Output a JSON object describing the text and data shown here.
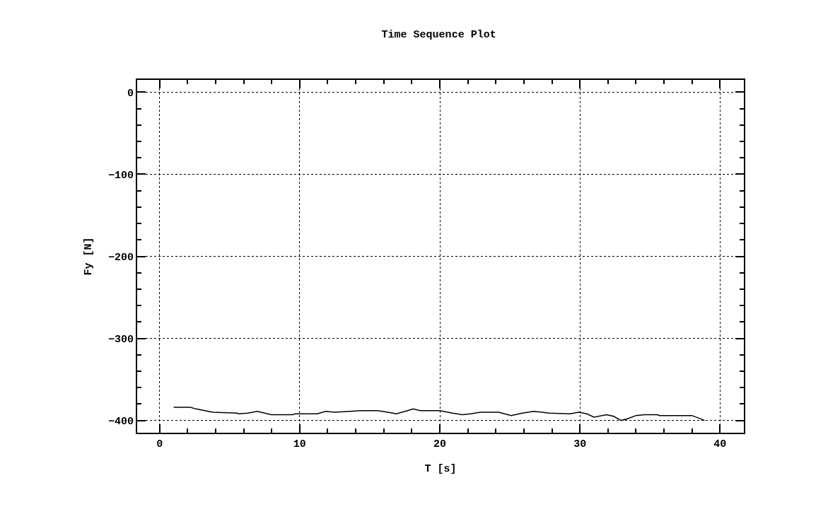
{
  "chart_data": {
    "type": "line",
    "title": "Time Sequence Plot",
    "xlabel": "T [s]",
    "ylabel": "Fy [N]",
    "x": [
      1.0,
      2.2,
      2.6,
      3.8,
      5.55,
      5.6,
      6.3,
      6.97,
      7.98,
      9.5,
      9.66,
      11.26,
      11.85,
      12.5,
      13.6,
      14.5,
      15.55,
      16.3,
      16.9,
      17.7,
      18.1,
      18.6,
      20.0,
      20.9,
      21.6,
      22.2,
      22.9,
      24.2,
      25.1,
      25.9,
      26.7,
      27.3,
      27.8,
      29.3,
      29.9,
      30.5,
      31.0,
      31.9,
      32.4,
      32.95,
      33.4,
      34.0,
      34.6,
      35.5,
      35.7,
      38.0,
      38.9
    ],
    "series": [
      {
        "color": "#000000",
        "values": [
          -384,
          -384,
          -386,
          -390,
          -391,
          -392,
          -391,
          -389,
          -393,
          -393,
          -392,
          -392,
          -389,
          -390,
          -389,
          -388,
          -388,
          -390,
          -392,
          -388,
          -386,
          -388,
          -388,
          -391,
          -393,
          -392,
          -390,
          -390,
          -394,
          -391,
          -389,
          -390,
          -391,
          -392,
          -390,
          -392,
          -396,
          -393,
          -395,
          -400,
          -398,
          -394,
          -393,
          -393,
          -394,
          -394,
          -400
        ]
      }
    ],
    "xlim": [
      -1.6,
      41.7
    ],
    "ylim": [
      -415,
      15
    ],
    "xticks": [
      0,
      {
        "value": 2,
        "label": null
      },
      {
        "value": 4,
        "label": null
      },
      {
        "value": 6,
        "label": null
      },
      {
        "value": 8,
        "label": null
      },
      10,
      {
        "value": 12,
        "label": null
      },
      {
        "value": 14,
        "label": null
      },
      {
        "value": 16,
        "label": null
      },
      {
        "value": 18,
        "label": null
      },
      20,
      {
        "value": 22,
        "label": null
      },
      {
        "value": 24,
        "label": null
      },
      {
        "value": 26,
        "label": null
      },
      {
        "value": 28,
        "label": null
      },
      30,
      {
        "value": 32,
        "label": null
      },
      {
        "value": 34,
        "label": null
      },
      {
        "value": 36,
        "label": null
      },
      {
        "value": 38,
        "label": null
      },
      40
    ],
    "yticks": [
      -400,
      {
        "value": -380,
        "label": null
      },
      {
        "value": -360,
        "label": null
      },
      {
        "value": -340,
        "label": null
      },
      {
        "value": -320,
        "label": null
      },
      -300,
      {
        "value": -280,
        "label": null
      },
      {
        "value": -260,
        "label": null
      },
      {
        "value": -240,
        "label": null
      },
      {
        "value": -220,
        "label": null
      },
      -200,
      {
        "value": -180,
        "label": null
      },
      {
        "value": -160,
        "label": null
      },
      {
        "value": -140,
        "label": null
      },
      {
        "value": -120,
        "label": null
      },
      -100,
      {
        "value": -80,
        "label": null
      },
      {
        "value": -60,
        "label": null
      },
      {
        "value": -40,
        "label": null
      },
      {
        "value": -20,
        "label": null
      },
      0
    ],
    "grid": true,
    "marker": "none",
    "line_style": "solid"
  }
}
